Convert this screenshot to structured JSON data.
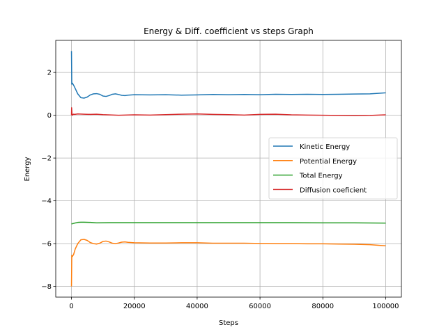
{
  "chart_data": {
    "type": "line",
    "title": "Energy & Diff. coefficient vs steps Graph",
    "xlabel": "Steps",
    "ylabel": "Energy",
    "xlim": [
      -5000,
      105000
    ],
    "ylim": [
      -8.5,
      3.5
    ],
    "xticks": [
      0,
      20000,
      40000,
      60000,
      80000,
      100000
    ],
    "yticks": [
      -8,
      -6,
      -4,
      -2,
      0,
      2
    ],
    "grid": true,
    "legend_position": "center-right",
    "series": [
      {
        "name": "Kinetic Energy",
        "color": "#1f77b4",
        "x": [
          0,
          100,
          300,
          700,
          1200,
          2000,
          3000,
          4000,
          5000,
          6000,
          7000,
          8000,
          9000,
          10000,
          11000,
          12000,
          13000,
          14000,
          15000,
          16000,
          17000,
          18000,
          20000,
          25000,
          30000,
          35000,
          40000,
          45000,
          50000,
          55000,
          60000,
          65000,
          70000,
          75000,
          80000,
          85000,
          90000,
          95000,
          98000,
          100000
        ],
        "y": [
          3.0,
          1.45,
          1.5,
          1.4,
          1.25,
          1.0,
          0.82,
          0.8,
          0.85,
          0.95,
          1.0,
          1.01,
          0.98,
          0.9,
          0.88,
          0.92,
          0.98,
          1.0,
          0.97,
          0.93,
          0.92,
          0.94,
          0.96,
          0.95,
          0.96,
          0.94,
          0.95,
          0.97,
          0.96,
          0.97,
          0.96,
          0.98,
          0.97,
          0.98,
          0.97,
          0.98,
          0.99,
          1.0,
          1.03,
          1.05
        ]
      },
      {
        "name": "Potential Energy",
        "color": "#ff7f0e",
        "x": [
          0,
          100,
          300,
          700,
          1200,
          2000,
          3000,
          4000,
          5000,
          6000,
          7000,
          8000,
          9000,
          10000,
          11000,
          12000,
          13000,
          14000,
          15000,
          16000,
          17000,
          18000,
          20000,
          25000,
          30000,
          35000,
          40000,
          45000,
          50000,
          55000,
          60000,
          65000,
          70000,
          75000,
          80000,
          85000,
          90000,
          95000,
          98000,
          100000
        ],
        "y": [
          -8.0,
          -6.55,
          -6.6,
          -6.5,
          -6.25,
          -6.0,
          -5.82,
          -5.8,
          -5.85,
          -5.95,
          -6.0,
          -6.02,
          -5.98,
          -5.9,
          -5.88,
          -5.92,
          -5.98,
          -6.0,
          -5.97,
          -5.93,
          -5.92,
          -5.94,
          -5.96,
          -5.97,
          -5.97,
          -5.96,
          -5.96,
          -5.98,
          -5.98,
          -5.98,
          -5.99,
          -6.0,
          -6.0,
          -6.01,
          -6.01,
          -6.02,
          -6.03,
          -6.05,
          -6.08,
          -6.1
        ]
      },
      {
        "name": "Total Energy",
        "color": "#2ca02c",
        "x": [
          0,
          1000,
          2000,
          3000,
          4000,
          6000,
          8000,
          12000,
          20000,
          30000,
          40000,
          50000,
          60000,
          70000,
          80000,
          90000,
          100000
        ],
        "y": [
          -5.08,
          -5.04,
          -5.01,
          -5.0,
          -5.0,
          -5.01,
          -5.03,
          -5.02,
          -5.02,
          -5.02,
          -5.02,
          -5.02,
          -5.02,
          -5.02,
          -5.03,
          -5.03,
          -5.04
        ]
      },
      {
        "name": "Diffusion coeficient",
        "color": "#d62728",
        "x": [
          0,
          50,
          150,
          300,
          600,
          1000,
          2000,
          4000,
          6000,
          8000,
          10000,
          15000,
          20000,
          25000,
          30000,
          35000,
          40000,
          45000,
          50000,
          55000,
          60000,
          65000,
          70000,
          75000,
          80000,
          85000,
          90000,
          95000,
          100000
        ],
        "y": [
          0.0,
          0.35,
          0.08,
          0.0,
          0.05,
          0.04,
          0.06,
          0.05,
          0.04,
          0.05,
          0.03,
          0.0,
          0.02,
          0.01,
          0.03,
          0.05,
          0.06,
          0.04,
          0.03,
          0.01,
          0.04,
          0.05,
          0.02,
          0.01,
          0.0,
          -0.01,
          -0.02,
          -0.01,
          0.02
        ]
      }
    ]
  }
}
